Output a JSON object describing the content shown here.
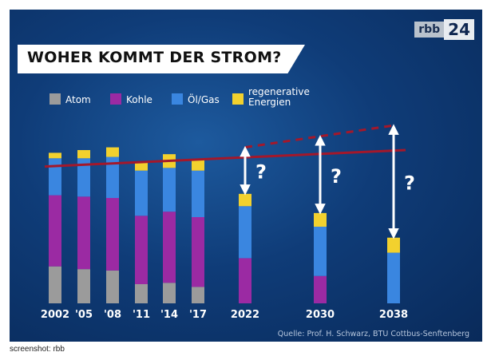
{
  "logo": {
    "brand": "rbb",
    "number": "24"
  },
  "title": "WOHER KOMMT DER STROM?",
  "source": "Quelle: Prof. H. Schwarz, BTU Cottbus-Senftenberg",
  "caption": "screenshot: rbb",
  "question_mark": "?",
  "colors": {
    "atom": "#9b9b9b",
    "kohle": "#9b2aa3",
    "oelgas": "#3a86e0",
    "regenerative": "#f2d12e",
    "trend": "#a3182b",
    "arrow": "#ffffff"
  },
  "chart_data": {
    "type": "bar",
    "stacked": true,
    "categories": [
      "2002",
      "'05",
      "'08",
      "'11",
      "'14",
      "'17",
      "2022",
      "2030",
      "2038"
    ],
    "series": [
      {
        "name": "Atom",
        "values": [
          27,
          25,
          24,
          14,
          15,
          12,
          0,
          0,
          0
        ]
      },
      {
        "name": "Kohle",
        "values": [
          52,
          53,
          53,
          50,
          52,
          51,
          33,
          20,
          0
        ]
      },
      {
        "name": "Öl/Gas",
        "values": [
          27,
          28,
          30,
          33,
          32,
          34,
          38,
          36,
          37
        ]
      },
      {
        "name": "regenerative Energien",
        "values": [
          4,
          6,
          7,
          6,
          10,
          8,
          9,
          10,
          11
        ]
      }
    ],
    "legend": {
      "position": "top-left",
      "entries": [
        "Atom",
        "Kohle",
        "Öl/Gas",
        "regenerative\nEnergien"
      ]
    },
    "trend_line": {
      "solid_until": "2038",
      "start": 100,
      "end": 112
    },
    "dashed_line": {
      "from": "2022",
      "start": 114,
      "end": 130
    },
    "gap_arrows": [
      {
        "category": "2022",
        "from": 80,
        "to": 114
      },
      {
        "category": "2030",
        "from": 66,
        "to": 122
      },
      {
        "category": "2038",
        "from": 48,
        "to": 130
      }
    ],
    "ylim": [
      0,
      140
    ],
    "grid": false
  }
}
